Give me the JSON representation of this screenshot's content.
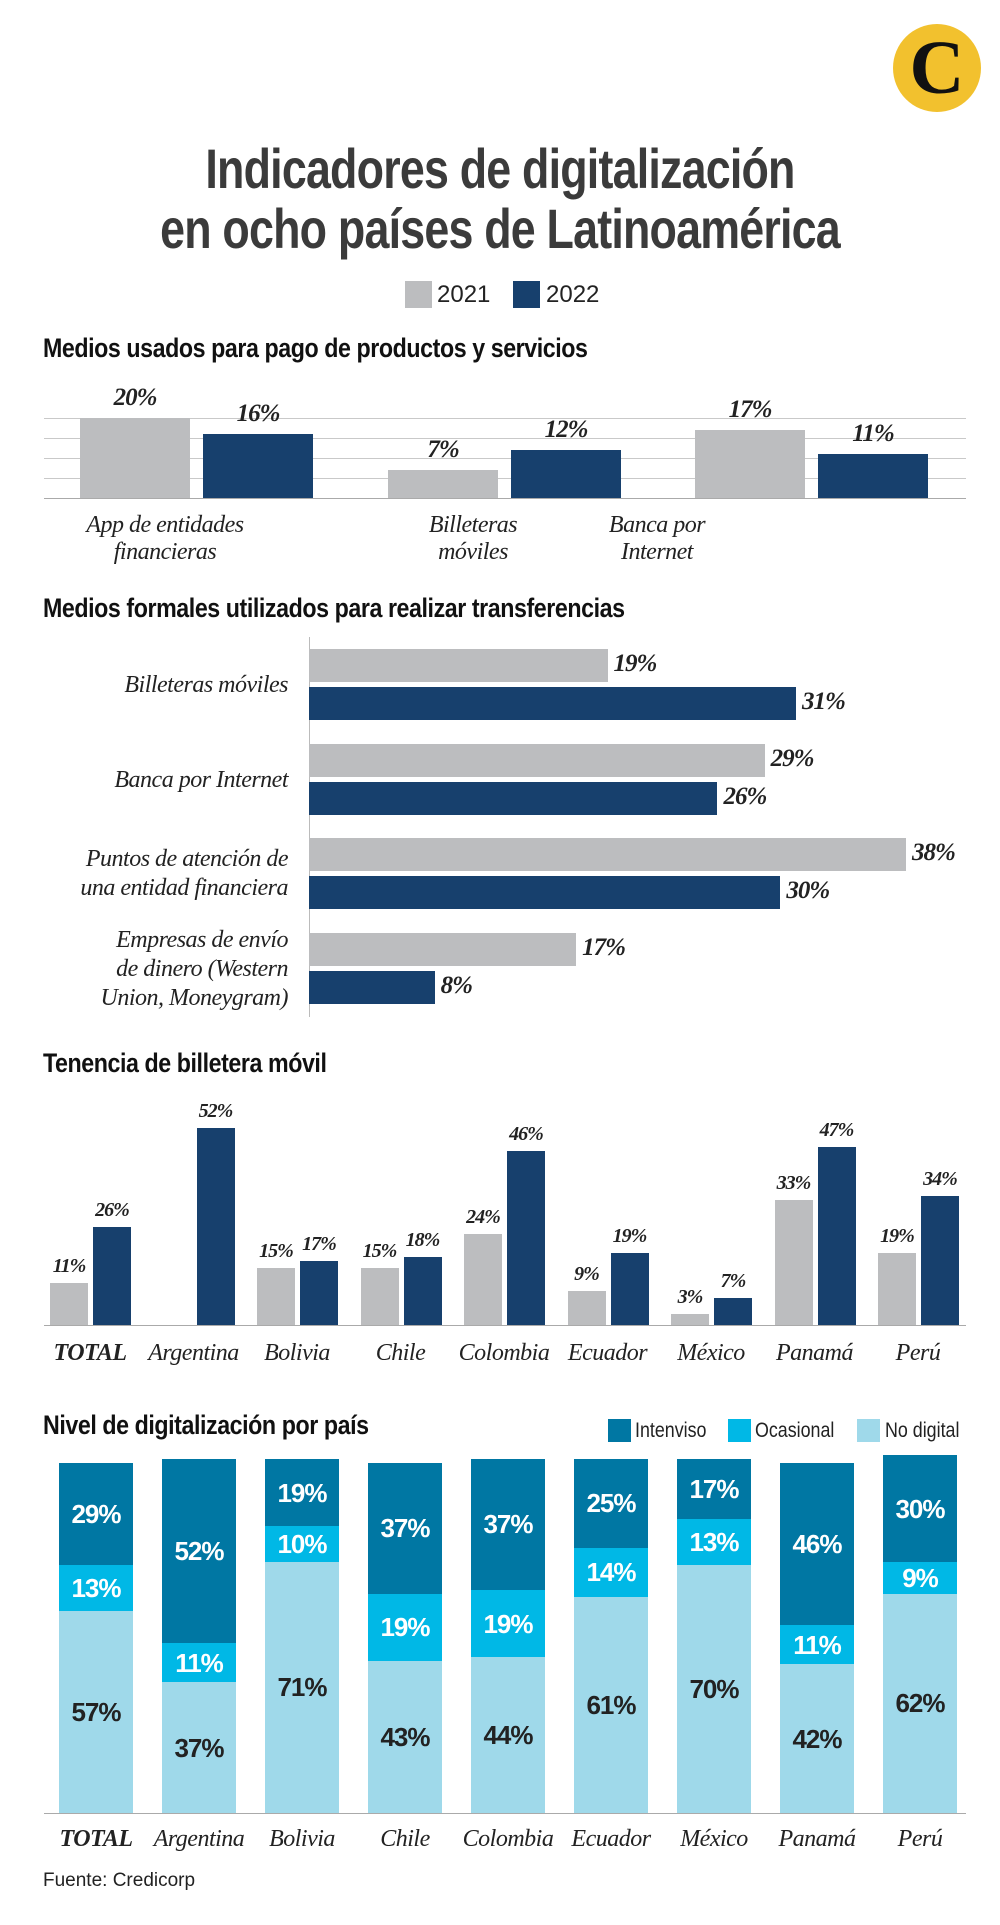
{
  "logo": {
    "letter": "C"
  },
  "title": {
    "line1": "Indicadores de digitalización",
    "line2": "en ocho países de Latinoamérica"
  },
  "legend_years": [
    {
      "label": "2021",
      "color": "#bcbdbf"
    },
    {
      "label": "2022",
      "color": "#17406d"
    }
  ],
  "colors": {
    "y2021": "#bcbdbf",
    "y2022": "#17406d",
    "intensivo": "#0077a3",
    "ocasional": "#00b8e6",
    "no_digital": "#9fd9ea"
  },
  "chart_data": [
    {
      "type": "bar",
      "title": "Medios usados para pago de productos y servicios",
      "categories": [
        [
          "App de entidades",
          "financieras"
        ],
        [
          "Billeteras",
          "móviles"
        ],
        [
          "Banca por",
          "Internet"
        ]
      ],
      "series": [
        {
          "name": "2021",
          "values": [
            20,
            7,
            17
          ],
          "labels": [
            "20%",
            "7%",
            "17%"
          ]
        },
        {
          "name": "2022",
          "values": [
            16,
            12,
            11
          ],
          "labels": [
            "16%",
            "12%",
            "11%"
          ]
        }
      ],
      "ylim": [
        0,
        20
      ],
      "grid": true
    },
    {
      "type": "bar",
      "orientation": "horizontal",
      "title": "Medios formales utilizados para realizar transferencias",
      "categories": [
        [
          "Billeteras móviles"
        ],
        [
          "Banca por Internet"
        ],
        [
          "Puntos de atención de",
          "una entidad financiera"
        ],
        [
          "Empresas de envío",
          "de dinero (Western",
          "Union, Moneygram)"
        ]
      ],
      "series": [
        {
          "name": "2021",
          "values": [
            19,
            29,
            38,
            17
          ],
          "labels": [
            "19%",
            "29%",
            "38%",
            "17%"
          ]
        },
        {
          "name": "2022",
          "values": [
            31,
            26,
            30,
            8
          ],
          "labels": [
            "31%",
            "26%",
            "30%",
            "8%"
          ]
        }
      ],
      "xlim": [
        0,
        38
      ],
      "grid": false
    },
    {
      "type": "bar",
      "title": "Tenencia de billetera móvil",
      "categories": [
        "TOTAL",
        "Argentina",
        "Bolivia",
        "Chile",
        "Colombia",
        "Ecuador",
        "México",
        "Panamá",
        "Perú"
      ],
      "series": [
        {
          "name": "2021",
          "values": [
            11,
            null,
            15,
            15,
            24,
            9,
            3,
            33,
            19
          ],
          "labels": [
            "11%",
            "",
            "15%",
            "15%",
            "24%",
            "9%",
            "3%",
            "33%",
            "19%"
          ]
        },
        {
          "name": "2022",
          "values": [
            26,
            52,
            17,
            18,
            46,
            19,
            7,
            47,
            34
          ],
          "labels": [
            "26%",
            "52%",
            "17%",
            "18%",
            "46%",
            "19%",
            "7%",
            "47%",
            "34%"
          ]
        }
      ],
      "ylim": [
        0,
        52
      ],
      "grid": false
    },
    {
      "type": "bar",
      "stacked": true,
      "title": "Nivel de digitalización por país",
      "legend": [
        "Intenviso",
        "Ocasional",
        "No digital"
      ],
      "legend_position": "top-right",
      "categories": [
        "TOTAL",
        "Argentina",
        "Bolivia",
        "Chile",
        "Colombia",
        "Ecuador",
        "México",
        "Panamá",
        "Perú"
      ],
      "series": [
        {
          "name": "Intenviso",
          "values": [
            29,
            52,
            19,
            37,
            37,
            25,
            17,
            46,
            30
          ],
          "labels": [
            "29%",
            "52%",
            "19%",
            "37%",
            "37%",
            "25%",
            "17%",
            "46%",
            "30%"
          ]
        },
        {
          "name": "Ocasional",
          "values": [
            13,
            11,
            10,
            19,
            19,
            14,
            13,
            11,
            9
          ],
          "labels": [
            "13%",
            "11%",
            "10%",
            "19%",
            "19%",
            "14%",
            "13%",
            "11%",
            "9%"
          ]
        },
        {
          "name": "No digital",
          "values": [
            57,
            37,
            71,
            43,
            44,
            61,
            70,
            42,
            62
          ],
          "labels": [
            "57%",
            "37%",
            "71%",
            "43%",
            "44%",
            "61%",
            "70%",
            "42%",
            "62%"
          ]
        }
      ],
      "ylim": [
        0,
        100
      ]
    }
  ],
  "source": "Fuente: Credicorp"
}
